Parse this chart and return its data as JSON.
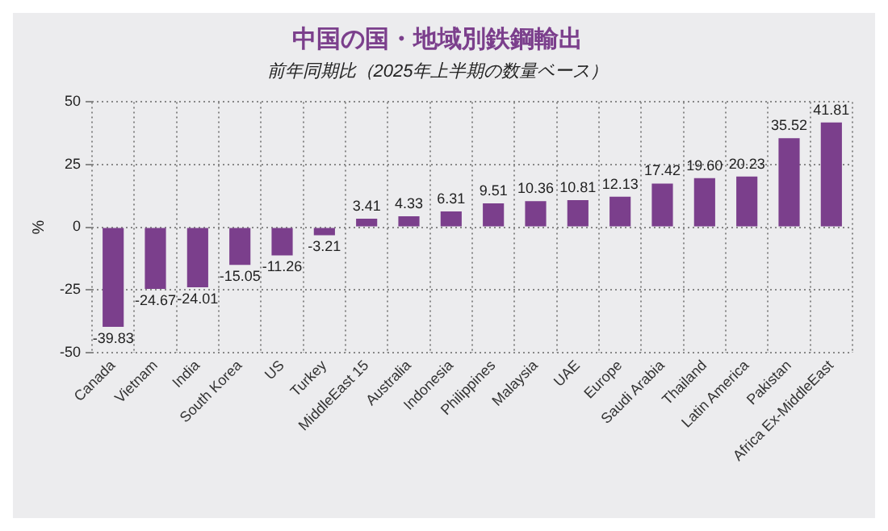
{
  "chart_data": {
    "type": "bar",
    "title": "中国の国・地域別鉄鋼輸出",
    "subtitle": "前年同期比（2025年上半期の数量ベース）",
    "ylabel": "%",
    "categories": [
      "Canada",
      "Vietnam",
      "India",
      "South Korea",
      "US",
      "Turkey",
      "MiddleEast 15",
      "Australia",
      "Indonesia",
      "Philippines",
      "Malaysia",
      "UAE",
      "Europe",
      "Saudi Arabia",
      "Thailand",
      "Latin America",
      "Pakistan",
      "Africa Ex-MiddleEast"
    ],
    "values": [
      -39.83,
      -24.67,
      -24.01,
      -15.05,
      -11.26,
      -3.21,
      3.41,
      4.33,
      6.31,
      9.51,
      10.36,
      10.81,
      12.13,
      17.42,
      19.6,
      20.23,
      35.52,
      41.81
    ],
    "value_labels": [
      "-39.83",
      "-24.67",
      "-24.01",
      "-15.05",
      "-11.26",
      "-3.21",
      "3.41",
      "4.33",
      "6.31",
      "9.51",
      "10.36",
      "10.81",
      "12.13",
      "17.42",
      "19.60",
      "20.23",
      "35.52",
      "41.81"
    ],
    "color": "#7b3f8c",
    "ylim": [
      -50,
      50
    ],
    "yticks": [
      -50,
      -25,
      0,
      25,
      50
    ],
    "grid": true,
    "legend": false
  }
}
